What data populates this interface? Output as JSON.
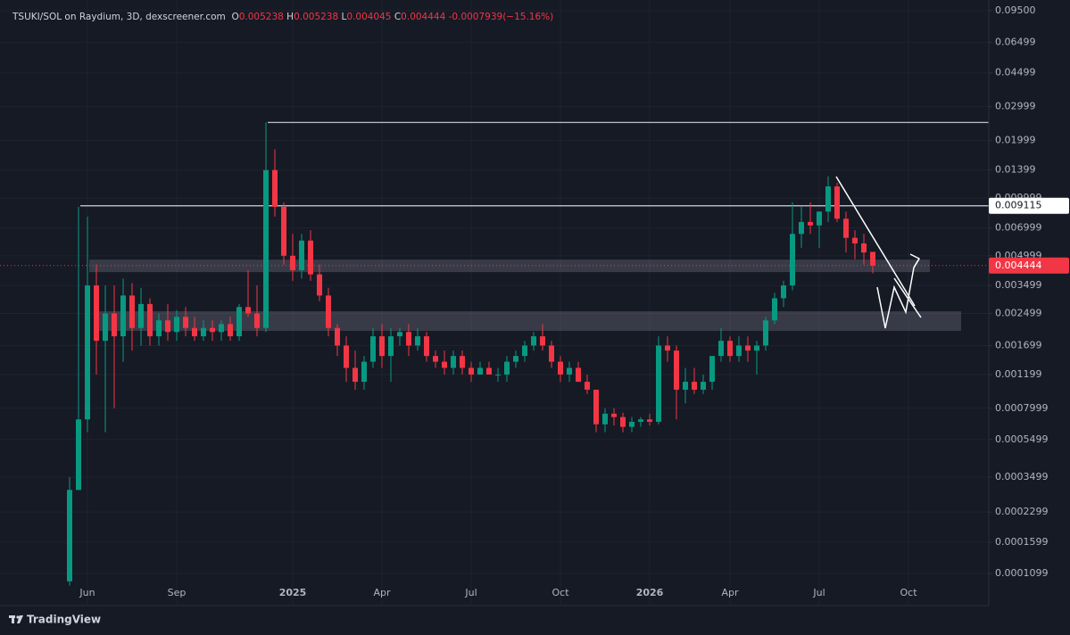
{
  "chart_data": {
    "type": "candlestick",
    "title": "TSUKI/SOL on Raydium, 3D, dexscreener.com",
    "ohlc_labels": [
      "O",
      "H",
      "L",
      "C"
    ],
    "change": -0.0007939,
    "change_label": "(−15.16%)",
    "brand": "TradingView",
    "log_scale": true,
    "grid": true,
    "up_color": "#089981",
    "down_color": "#f23645",
    "categories": [
      null,
      null,
      "Jun",
      null,
      null,
      null,
      null,
      null,
      null,
      null,
      null,
      null,
      "Sep",
      null,
      null,
      null,
      null,
      null,
      null,
      null,
      null,
      null,
      null,
      null,
      null,
      "2025",
      null,
      null,
      null,
      null,
      null,
      null,
      null,
      null,
      null,
      "Apr",
      null,
      null,
      null,
      null,
      null,
      null,
      null,
      null,
      null,
      "Jul",
      null,
      null,
      null,
      null,
      null,
      null,
      null,
      null,
      null,
      "Oct",
      null,
      null,
      null,
      null,
      null,
      null,
      null,
      null,
      null,
      "2026",
      null,
      null,
      null,
      null,
      null,
      null,
      null,
      null,
      "Apr",
      null,
      null,
      null,
      null,
      null,
      null,
      null,
      null,
      null,
      "Jul",
      null,
      null,
      null,
      null,
      null,
      null,
      null,
      null,
      null,
      "Oct"
    ],
    "open": [
      0.0001,
      0.0003,
      0.0007,
      0.0035,
      0.0018,
      0.0025,
      0.0019,
      0.0031,
      0.0021,
      0.0028,
      0.0019,
      0.0023,
      0.002,
      0.0024,
      0.0021,
      0.0019,
      0.0021,
      0.002,
      0.0022,
      0.0019,
      0.0027,
      0.0025,
      0.0021,
      0.014,
      0.009,
      0.005,
      0.0042,
      0.006,
      0.004,
      0.0031,
      0.0021,
      0.0017,
      0.0013,
      0.0011,
      0.0014,
      0.0019,
      0.0015,
      0.0019,
      0.002,
      0.0017,
      0.0019,
      0.0015,
      0.0014,
      0.0013,
      0.0015,
      0.0013,
      0.0012,
      0.0013,
      0.0012,
      0.0012,
      0.0014,
      0.0015,
      0.0017,
      0.0019,
      0.0017,
      0.0014,
      0.0012,
      0.0013,
      0.0011,
      0.001,
      0.00066,
      0.00075,
      0.00072,
      0.00064,
      0.00068,
      0.0007,
      0.00068,
      0.0017,
      0.0016,
      0.001,
      0.0011,
      0.001,
      0.0011,
      0.0015,
      0.0018,
      0.0015,
      0.0017,
      0.0016,
      0.0017,
      0.0023,
      0.003,
      0.0035,
      0.0065,
      0.0075,
      0.0072,
      0.0085,
      0.0115,
      0.0078,
      0.0062,
      0.0058,
      0.005238,
      null,
      null,
      null,
      null
    ],
    "high": [
      0.00035,
      0.009,
      0.008,
      0.0045,
      0.0035,
      0.0035,
      0.0038,
      0.0036,
      0.0034,
      0.003,
      0.0025,
      0.0028,
      0.0026,
      0.0027,
      0.0024,
      0.0023,
      0.0023,
      0.0023,
      0.0024,
      0.0028,
      0.0042,
      0.0035,
      0.0248,
      0.018,
      0.0095,
      0.0065,
      0.0065,
      0.0068,
      0.0045,
      0.0034,
      0.0022,
      0.0019,
      0.0016,
      0.0015,
      0.0021,
      0.0022,
      0.0021,
      0.0021,
      0.0022,
      0.0021,
      0.002,
      0.0016,
      0.0016,
      0.0016,
      0.0016,
      0.0014,
      0.0014,
      0.0014,
      0.0013,
      0.0015,
      0.0016,
      0.0018,
      0.002,
      0.0022,
      0.0018,
      0.0015,
      0.0014,
      0.0014,
      0.0012,
      0.001,
      0.0008,
      0.0008,
      0.00076,
      0.00072,
      0.00072,
      0.00075,
      0.0019,
      0.0019,
      0.0017,
      0.0013,
      0.0013,
      0.0012,
      0.0015,
      0.0021,
      0.0019,
      0.0019,
      0.0019,
      0.0018,
      0.0024,
      0.0032,
      0.0037,
      0.0095,
      0.009,
      0.0095,
      0.0085,
      0.013,
      0.012,
      0.0085,
      0.0068,
      0.0065,
      0.005238,
      null,
      null,
      null,
      null
    ],
    "low": [
      9.5e-05,
      0.0003,
      0.0006,
      0.0012,
      0.0006,
      0.0008,
      0.0014,
      0.0016,
      0.0017,
      0.0017,
      0.0017,
      0.0018,
      0.0018,
      0.0019,
      0.0018,
      0.0018,
      0.0018,
      0.0018,
      0.0018,
      0.0018,
      0.0024,
      0.0019,
      0.002,
      0.008,
      0.0045,
      0.0037,
      0.0038,
      0.0037,
      0.0029,
      0.0019,
      0.0015,
      0.0011,
      0.001,
      0.001,
      0.0013,
      0.0013,
      0.0011,
      0.0017,
      0.0015,
      0.0016,
      0.0014,
      0.0013,
      0.0012,
      0.0012,
      0.0012,
      0.0011,
      0.0012,
      0.0012,
      0.0011,
      0.0011,
      0.0013,
      0.0014,
      0.0016,
      0.0016,
      0.0013,
      0.0011,
      0.0011,
      0.0011,
      0.00095,
      0.0006,
      0.0006,
      0.00065,
      0.0006,
      0.0006,
      0.00064,
      0.00065,
      0.00066,
      0.0014,
      0.0007,
      0.00085,
      0.00095,
      0.00095,
      0.001,
      0.0014,
      0.0014,
      0.0014,
      0.0014,
      0.0012,
      0.0016,
      0.0022,
      0.0027,
      0.0033,
      0.0055,
      0.0065,
      0.0055,
      0.0075,
      0.0075,
      0.0052,
      0.0048,
      0.0045,
      0.004045,
      null,
      null,
      null,
      null
    ],
    "close": [
      0.0003,
      0.0007,
      0.0035,
      0.0018,
      0.0025,
      0.0019,
      0.0031,
      0.0021,
      0.0028,
      0.0019,
      0.0023,
      0.002,
      0.0024,
      0.0021,
      0.0019,
      0.0021,
      0.002,
      0.0022,
      0.0019,
      0.0027,
      0.0025,
      0.0021,
      0.014,
      0.009,
      0.005,
      0.0042,
      0.006,
      0.004,
      0.0031,
      0.0021,
      0.0017,
      0.0013,
      0.0011,
      0.0014,
      0.0019,
      0.0015,
      0.0019,
      0.002,
      0.0017,
      0.0019,
      0.0015,
      0.0014,
      0.0013,
      0.0015,
      0.0013,
      0.0012,
      0.0013,
      0.0012,
      0.0012,
      0.0014,
      0.0015,
      0.0017,
      0.0019,
      0.0017,
      0.0014,
      0.0012,
      0.0013,
      0.0011,
      0.001,
      0.00066,
      0.00075,
      0.00072,
      0.00064,
      0.00068,
      0.0007,
      0.00068,
      0.0017,
      0.0016,
      0.001,
      0.0011,
      0.001,
      0.0011,
      0.0015,
      0.0018,
      0.0015,
      0.0017,
      0.0016,
      0.0017,
      0.0023,
      0.003,
      0.0035,
      0.0065,
      0.0075,
      0.0072,
      0.0085,
      0.0115,
      0.0078,
      0.0062,
      0.0058,
      0.0052,
      0.004444,
      null,
      null,
      null,
      null
    ],
    "ylim": [
      9.67e-05,
      0.108
    ],
    "yticks": [
      {
        "value": 0.095,
        "label": "0.09500"
      },
      0.06499,
      0.04499,
      0.02999,
      0.01999,
      0.01399,
      0.009999,
      0.006999,
      0.004999,
      0.003499,
      0.002499,
      0.001699,
      0.001199,
      0.0007999,
      0.0005499,
      0.0003499,
      0.0002299,
      0.0001599,
      0.0001099
    ],
    "hlines": [
      0.0248,
      0.009115
    ],
    "zones": [
      [
        0.00411,
        0.004775
      ],
      [
        0.002027,
        0.002566
      ]
    ]
  }
}
